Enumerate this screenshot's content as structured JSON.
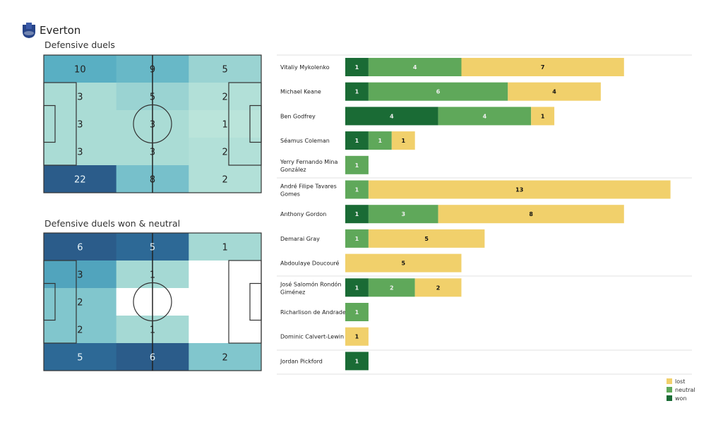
{
  "team": {
    "name": "Everton",
    "crest_icon": "everton-crest-icon"
  },
  "colors": {
    "won": "#1a6b35",
    "neutral": "#5fa85a",
    "lost": "#f1d06b"
  },
  "chart_data": [
    {
      "type": "heatmap",
      "title": "Defensive duels",
      "grid": [
        [
          10,
          9,
          5
        ],
        [
          3,
          5,
          2
        ],
        [
          3,
          3,
          1
        ],
        [
          3,
          3,
          2
        ],
        [
          22,
          8,
          2
        ]
      ]
    },
    {
      "type": "heatmap",
      "title": "Defensive duels won & neutral",
      "grid": [
        [
          6,
          5,
          1
        ],
        [
          3,
          1,
          0
        ],
        [
          2,
          0,
          0
        ],
        [
          2,
          1,
          0
        ],
        [
          5,
          6,
          2
        ]
      ]
    },
    {
      "type": "bar",
      "orientation": "horizontal-stacked",
      "series_order": [
        "won",
        "neutral",
        "lost"
      ],
      "legend": [
        "lost",
        "neutral",
        "won"
      ],
      "legend_position": "bottom-right",
      "players": [
        {
          "name": "Vitaliy Mykolenko",
          "won": 1,
          "neutral": 4,
          "lost": 7
        },
        {
          "name": "Michael Keane",
          "won": 1,
          "neutral": 6,
          "lost": 4
        },
        {
          "name": "Ben Godfrey",
          "won": 4,
          "neutral": 4,
          "lost": 1
        },
        {
          "name": "Séamus Coleman",
          "won": 1,
          "neutral": 1,
          "lost": 1
        },
        {
          "name": "Yerry Fernando Mina González",
          "won": 0,
          "neutral": 1,
          "lost": 0
        },
        {
          "name": "André Filipe Tavares Gomes",
          "won": 0,
          "neutral": 1,
          "lost": 13
        },
        {
          "name": "Anthony Gordon",
          "won": 1,
          "neutral": 3,
          "lost": 8
        },
        {
          "name": "Demarai Gray",
          "won": 0,
          "neutral": 1,
          "lost": 5
        },
        {
          "name": "Abdoulaye Doucouré",
          "won": 0,
          "neutral": 0,
          "lost": 5
        },
        {
          "name": "José Salomón Rondón Giménez",
          "won": 1,
          "neutral": 2,
          "lost": 2
        },
        {
          "name": "Richarlison de Andrade",
          "won": 0,
          "neutral": 1,
          "lost": 0
        },
        {
          "name": "Dominic Calvert-Lewin",
          "won": 0,
          "neutral": 0,
          "lost": 1
        },
        {
          "name": "Jordan Pickford",
          "won": 1,
          "neutral": 0,
          "lost": 0
        }
      ]
    }
  ]
}
